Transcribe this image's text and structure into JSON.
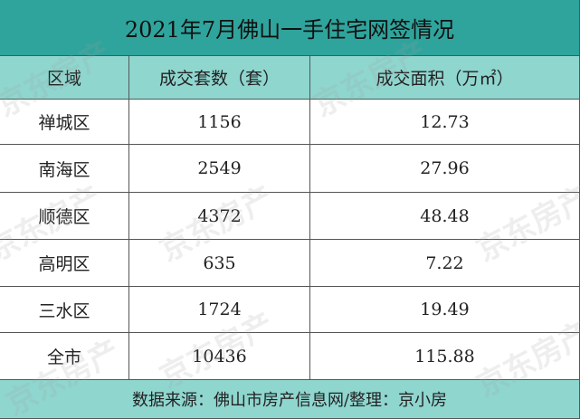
{
  "header": {
    "title": "2021年7月佛山一手住宅网签情况"
  },
  "table": {
    "columns": [
      "区域",
      "成交套数（套）",
      "成交面积（万㎡）"
    ],
    "rows": [
      [
        "禅城区",
        "1156",
        "12.73"
      ],
      [
        "南海区",
        "2549",
        "27.96"
      ],
      [
        "顺德区",
        "4372",
        "48.48"
      ],
      [
        "高明区",
        "635",
        "7.22"
      ],
      [
        "三水区",
        "1724",
        "19.49"
      ],
      [
        "全市",
        "10436",
        "115.88"
      ]
    ]
  },
  "footer": {
    "source": "数据来源：佛山市房产信息网/整理：京小房"
  },
  "watermark": "京东房产"
}
